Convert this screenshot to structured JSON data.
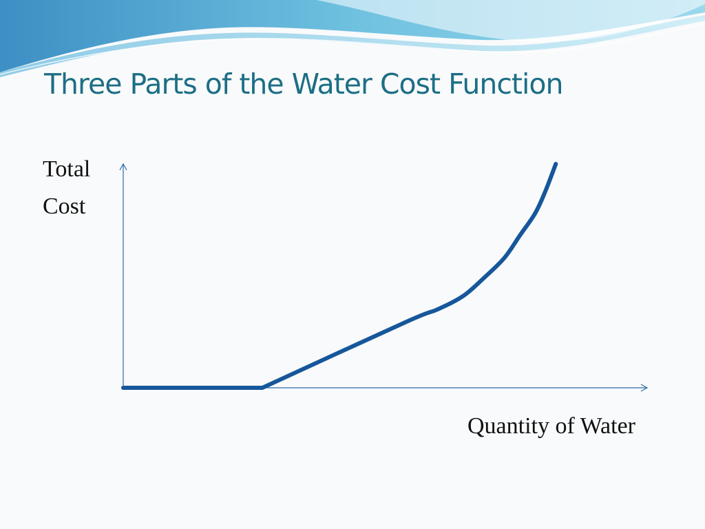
{
  "slide": {
    "title": "Three Parts of the Water Cost Function"
  },
  "chart_data": {
    "type": "line",
    "title": "Three Parts of the Water Cost Function",
    "ylabel_lines": [
      "Total",
      "Cost"
    ],
    "xlabel": "Quantity of Water",
    "xlim": [
      0,
      100
    ],
    "ylim": [
      0,
      100
    ],
    "grid": false,
    "series": [
      {
        "x": [
          0,
          27,
          55,
          61,
          66,
          70,
          74,
          77,
          80,
          82,
          84
        ],
        "y": [
          0,
          0,
          29.5,
          35,
          41,
          49,
          58,
          68,
          78,
          88,
          100
        ]
      }
    ],
    "colors": {
      "curve": "#16579b",
      "axis": "#2a6ca8",
      "title": "#1c6e85"
    }
  }
}
